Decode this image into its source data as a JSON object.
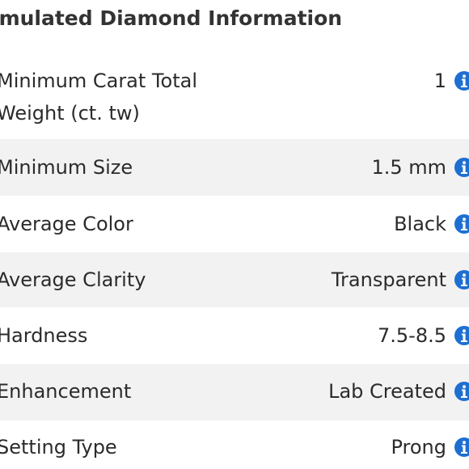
{
  "section": {
    "title": "imulated Diamond Information"
  },
  "rows": [
    {
      "label": "Minimum Carat Total Weight (ct. tw)",
      "value": "1"
    },
    {
      "label": "Minimum Size",
      "value": "1.5 mm"
    },
    {
      "label": "Average Color",
      "value": "Black"
    },
    {
      "label": "Average Clarity",
      "value": "Transparent"
    },
    {
      "label": "Hardness",
      "value": "7.5-8.5"
    },
    {
      "label": "Enhancement",
      "value": "Lab Created"
    },
    {
      "label": "Setting Type",
      "value": "Prong"
    }
  ],
  "icons": {
    "info": "info-icon"
  },
  "colors": {
    "info_icon": "#1e6fd2",
    "row_alt_background": "#f2f2f2",
    "text": "#2b2b2b"
  }
}
